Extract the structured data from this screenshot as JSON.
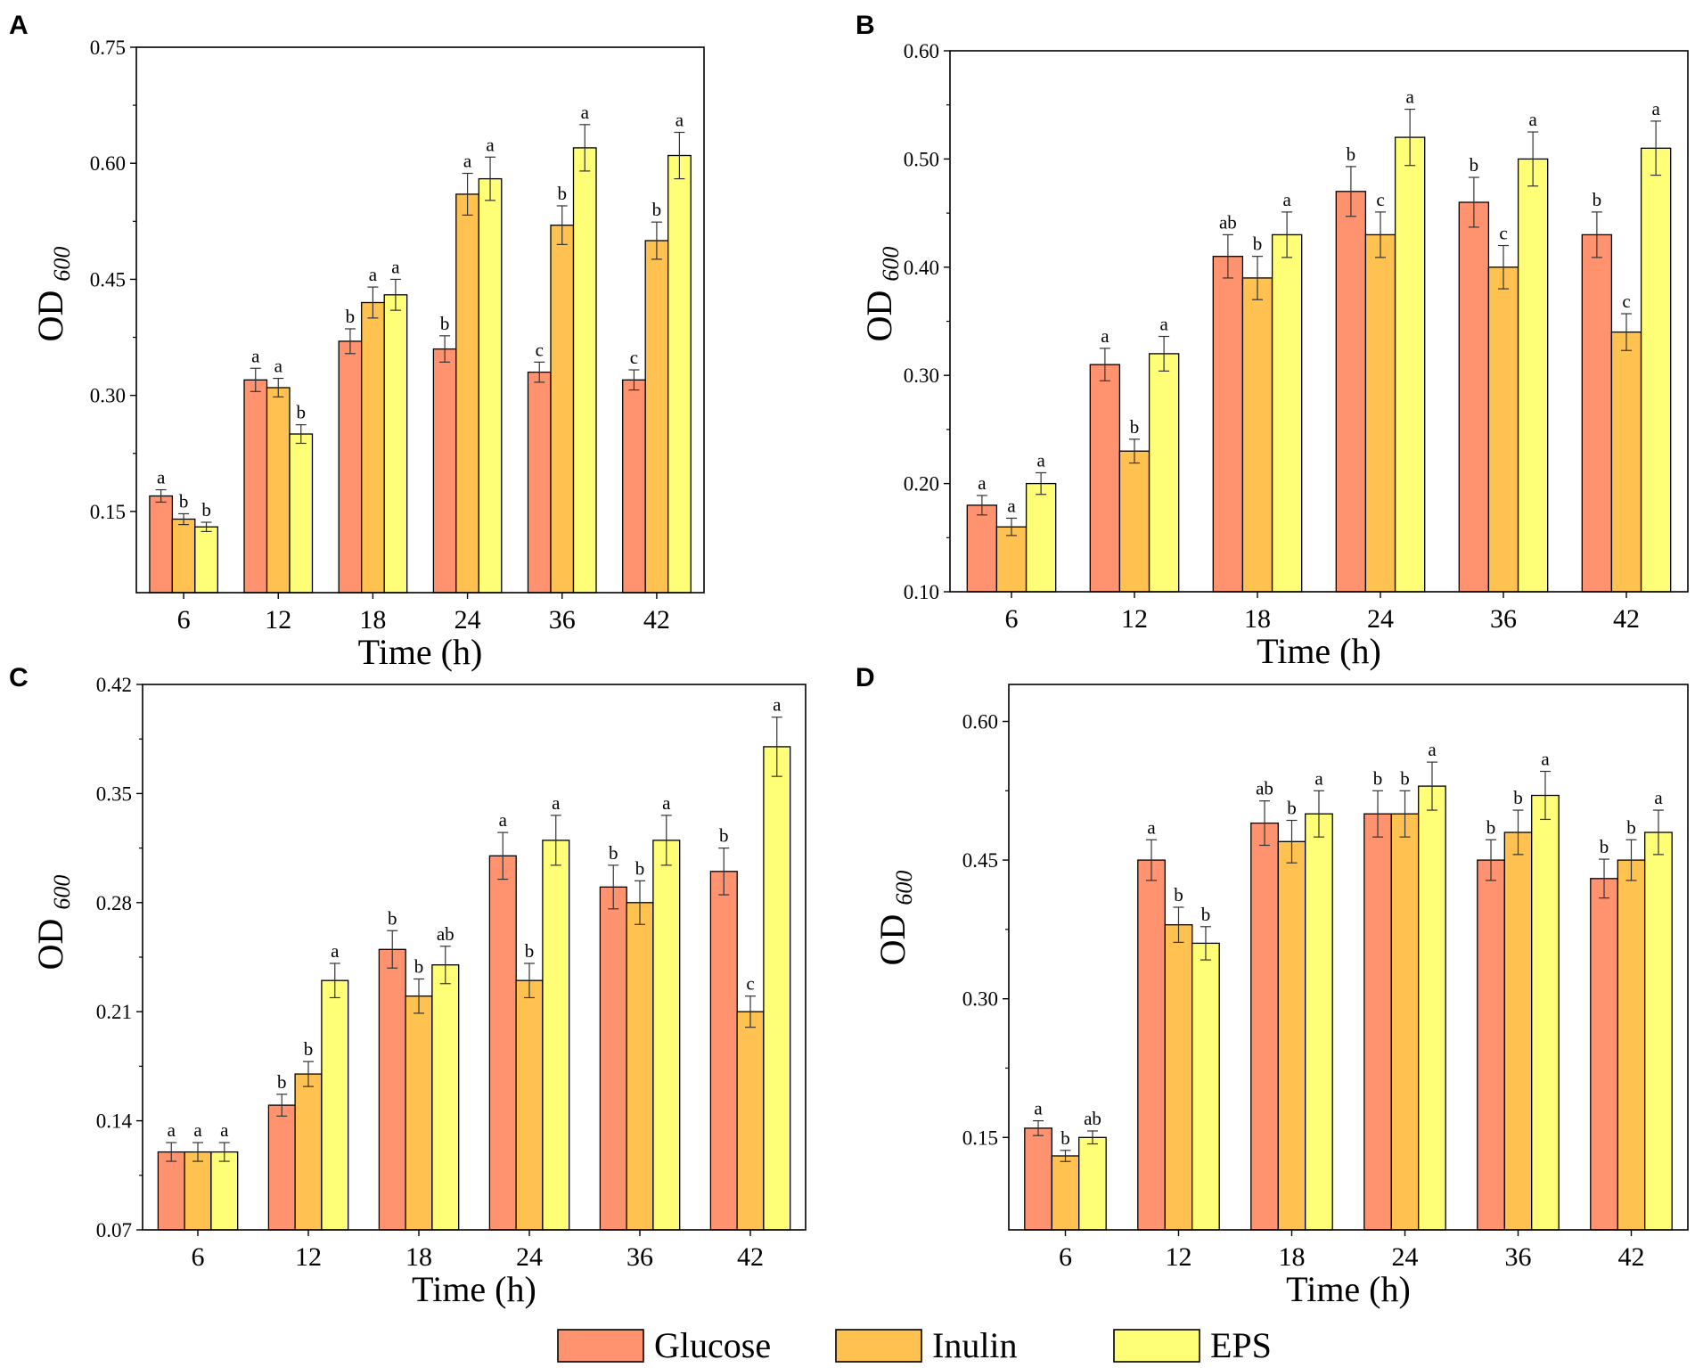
{
  "figure": {
    "legend": [
      {
        "name": "Glucose",
        "color": "#FF9370"
      },
      {
        "name": "Inulin",
        "color": "#FFC250"
      },
      {
        "name": "EPS",
        "color": "#FFFF77"
      }
    ]
  },
  "chart_data": [
    {
      "panel": "A",
      "type": "bar",
      "categories": [
        "6",
        "12",
        "18",
        "24",
        "36",
        "42"
      ],
      "xlabel": "Time (h)",
      "ylabel": "OD",
      "ylabel_sub": "600",
      "ylim": [
        0.045,
        0.75
      ],
      "yticks": [
        0.15,
        0.3,
        0.45,
        0.6,
        0.75
      ],
      "ytick_labels": [
        "0.15",
        "0.30",
        "0.45",
        "0.60",
        "0.75"
      ],
      "series": [
        {
          "name": "Glucose",
          "values": [
            0.17,
            0.32,
            0.37,
            0.36,
            0.33,
            0.32
          ],
          "errors": [
            0.008,
            0.015,
            0.016,
            0.017,
            0.013,
            0.013
          ],
          "letters": [
            "a",
            "a",
            "b",
            "b",
            "c",
            "c"
          ]
        },
        {
          "name": "Inulin",
          "values": [
            0.14,
            0.31,
            0.42,
            0.56,
            0.52,
            0.5
          ],
          "errors": [
            0.007,
            0.012,
            0.02,
            0.027,
            0.025,
            0.024
          ],
          "letters": [
            "b",
            "a",
            "a",
            "a",
            "b",
            "b"
          ]
        },
        {
          "name": "EPS",
          "values": [
            0.13,
            0.25,
            0.43,
            0.58,
            0.62,
            0.61
          ],
          "errors": [
            0.006,
            0.012,
            0.02,
            0.028,
            0.03,
            0.03
          ],
          "letters": [
            "b",
            "b",
            "a",
            "a",
            "a",
            "a"
          ]
        }
      ]
    },
    {
      "panel": "B",
      "type": "bar",
      "categories": [
        "6",
        "12",
        "18",
        "24",
        "36",
        "42"
      ],
      "xlabel": "Time (h)",
      "ylabel": "OD",
      "ylabel_sub": "600",
      "ylim": [
        0.1,
        0.6
      ],
      "yticks": [
        0.1,
        0.2,
        0.3,
        0.4,
        0.5,
        0.6
      ],
      "ytick_labels": [
        "0.10",
        "0.20",
        "0.30",
        "0.40",
        "0.50",
        "0.60"
      ],
      "series": [
        {
          "name": "Glucose",
          "values": [
            0.18,
            0.31,
            0.41,
            0.47,
            0.46,
            0.43
          ],
          "errors": [
            0.009,
            0.015,
            0.02,
            0.023,
            0.023,
            0.021
          ],
          "letters": [
            "a",
            "a",
            "ab",
            "b",
            "b",
            "b"
          ]
        },
        {
          "name": "Inulin",
          "values": [
            0.16,
            0.23,
            0.39,
            0.43,
            0.4,
            0.34
          ],
          "errors": [
            0.008,
            0.011,
            0.02,
            0.021,
            0.02,
            0.017
          ],
          "letters": [
            "a",
            "b",
            "b",
            "c",
            "c",
            "c"
          ]
        },
        {
          "name": "EPS",
          "values": [
            0.2,
            0.32,
            0.43,
            0.52,
            0.5,
            0.51
          ],
          "errors": [
            0.01,
            0.016,
            0.021,
            0.026,
            0.025,
            0.025
          ],
          "letters": [
            "a",
            "a",
            "a",
            "a",
            "a",
            "a"
          ]
        }
      ]
    },
    {
      "panel": "C",
      "type": "bar",
      "categories": [
        "6",
        "12",
        "18",
        "24",
        "36",
        "42"
      ],
      "xlabel": "Time (h)",
      "ylabel": "OD",
      "ylabel_sub": "600",
      "ylim": [
        0.07,
        0.42
      ],
      "yticks": [
        0.07,
        0.14,
        0.21,
        0.28,
        0.35,
        0.42
      ],
      "ytick_labels": [
        "0.07",
        "0.14",
        "0.21",
        "0.28",
        "0.35",
        "0.42"
      ],
      "series": [
        {
          "name": "Glucose",
          "values": [
            0.12,
            0.15,
            0.25,
            0.31,
            0.29,
            0.3
          ],
          "errors": [
            0.006,
            0.007,
            0.012,
            0.015,
            0.014,
            0.015
          ],
          "letters": [
            "a",
            "b",
            "b",
            "a",
            "b",
            "b"
          ]
        },
        {
          "name": "Inulin",
          "values": [
            0.12,
            0.17,
            0.22,
            0.23,
            0.28,
            0.21
          ],
          "errors": [
            0.006,
            0.008,
            0.011,
            0.011,
            0.014,
            0.01
          ],
          "letters": [
            "a",
            "b",
            "b",
            "b",
            "b",
            "c"
          ]
        },
        {
          "name": "EPS",
          "values": [
            0.12,
            0.23,
            0.24,
            0.32,
            0.32,
            0.38
          ],
          "errors": [
            0.006,
            0.011,
            0.012,
            0.016,
            0.016,
            0.019
          ],
          "letters": [
            "a",
            "a",
            "ab",
            "a",
            "a",
            "a"
          ]
        }
      ]
    },
    {
      "panel": "D",
      "type": "bar",
      "categories": [
        "6",
        "12",
        "18",
        "24",
        "36",
        "42"
      ],
      "xlabel": "Time (h)",
      "ylabel": "OD",
      "ylabel_sub": "600",
      "ylim": [
        0.05,
        0.64
      ],
      "yticks": [
        0.15,
        0.3,
        0.45,
        0.6
      ],
      "ytick_labels": [
        "0.15",
        "0.30",
        "0.45",
        "0.60"
      ],
      "series": [
        {
          "name": "Glucose",
          "values": [
            0.16,
            0.45,
            0.49,
            0.5,
            0.45,
            0.43
          ],
          "errors": [
            0.008,
            0.022,
            0.024,
            0.025,
            0.022,
            0.021
          ],
          "letters": [
            "a",
            "a",
            "ab",
            "b",
            "b",
            "b"
          ]
        },
        {
          "name": "Inulin",
          "values": [
            0.13,
            0.38,
            0.47,
            0.5,
            0.48,
            0.45
          ],
          "errors": [
            0.006,
            0.019,
            0.023,
            0.025,
            0.024,
            0.022
          ],
          "letters": [
            "b",
            "b",
            "b",
            "b",
            "b",
            "b"
          ]
        },
        {
          "name": "EPS",
          "values": [
            0.15,
            0.36,
            0.5,
            0.53,
            0.52,
            0.48
          ],
          "errors": [
            0.007,
            0.018,
            0.025,
            0.026,
            0.026,
            0.024
          ],
          "letters": [
            "ab",
            "b",
            "a",
            "a",
            "a",
            "a"
          ]
        }
      ]
    }
  ]
}
